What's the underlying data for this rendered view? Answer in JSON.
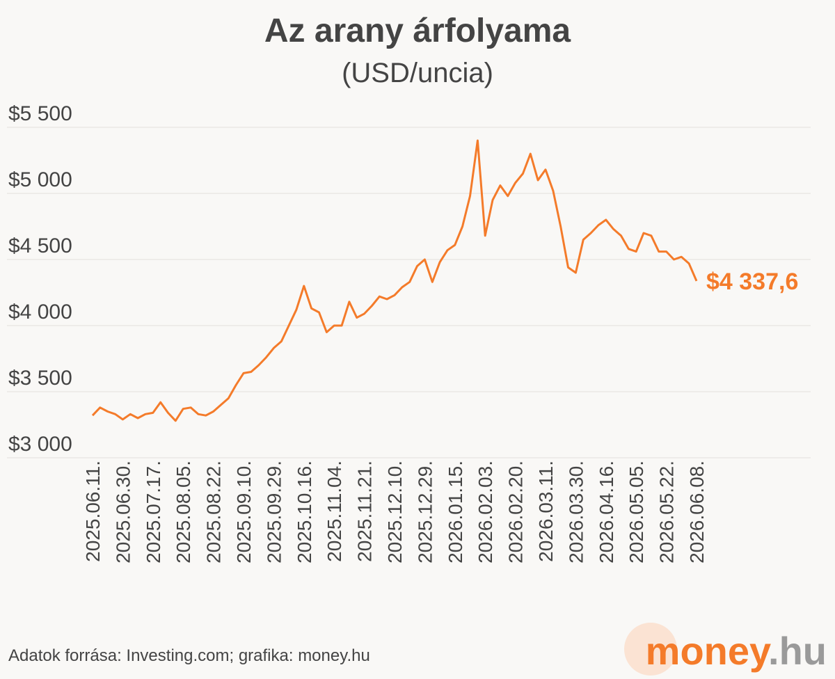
{
  "chart_data": {
    "type": "line",
    "title": "Az arany árfolyama",
    "subtitle": "(USD/uncia)",
    "source": "Adatok forrása: Investing.com; grafika: money.hu",
    "logo_main": "money",
    "logo_suffix": ".hu",
    "color": "#f47b2a",
    "grid": true,
    "categories": [
      "2025.06.11.",
      null,
      null,
      null,
      "2025.06.30.",
      null,
      null,
      null,
      "2025.07.17.",
      null,
      null,
      null,
      "2025.08.05.",
      null,
      null,
      null,
      "2025.08.22.",
      null,
      null,
      null,
      "2025.09.10.",
      null,
      null,
      null,
      "2025.09.29.",
      null,
      null,
      null,
      "2025.10.16.",
      null,
      null,
      null,
      "2025.11.04.",
      null,
      null,
      null,
      "2025.11.21.",
      null,
      null,
      null,
      "2025.12.10.",
      null,
      null,
      null,
      "2025.12.29.",
      null,
      null,
      null,
      "2026.01.15.",
      null,
      null,
      null,
      "2026.02.03.",
      null,
      null,
      null,
      "2026.02.20.",
      null,
      null,
      null,
      "2026.03.11.",
      null,
      null,
      null,
      "2026.03.30.",
      null,
      null,
      null,
      "2026.04.16.",
      null,
      null,
      null,
      "2026.05.05.",
      null,
      null,
      null,
      "2026.05.22.",
      null,
      null,
      null,
      "2026.06.08."
    ],
    "values": [
      3320,
      3380,
      3350,
      3330,
      3290,
      3330,
      3300,
      3330,
      3340,
      3420,
      3340,
      3280,
      3370,
      3380,
      3330,
      3320,
      3350,
      3400,
      3450,
      3550,
      3640,
      3650,
      3700,
      3760,
      3830,
      3880,
      4000,
      4120,
      4300,
      4130,
      4100,
      3950,
      4000,
      4000,
      4180,
      4060,
      4090,
      4150,
      4220,
      4200,
      4230,
      4290,
      4330,
      4450,
      4500,
      4330,
      4480,
      4570,
      4610,
      4750,
      4980,
      5400,
      4680,
      4950,
      5060,
      4980,
      5080,
      5150,
      5300,
      5100,
      5180,
      5020,
      4750,
      4440,
      4400,
      4650,
      4700,
      4760,
      4800,
      4730,
      4680,
      4580,
      4560,
      4700,
      4680,
      4560,
      4560,
      4500,
      4520,
      4470,
      4337.6
    ],
    "last_value_label": "$4 337,6",
    "ylim": [
      3000,
      5500
    ],
    "yticks": [
      {
        "value": 3000,
        "label": "$3 000"
      },
      {
        "value": 3500,
        "label": "$3 500"
      },
      {
        "value": 4000,
        "label": "$4 000"
      },
      {
        "value": 4500,
        "label": "$4 500"
      },
      {
        "value": 5000,
        "label": "$5 000"
      },
      {
        "value": 5500,
        "label": "$5 500"
      }
    ]
  }
}
